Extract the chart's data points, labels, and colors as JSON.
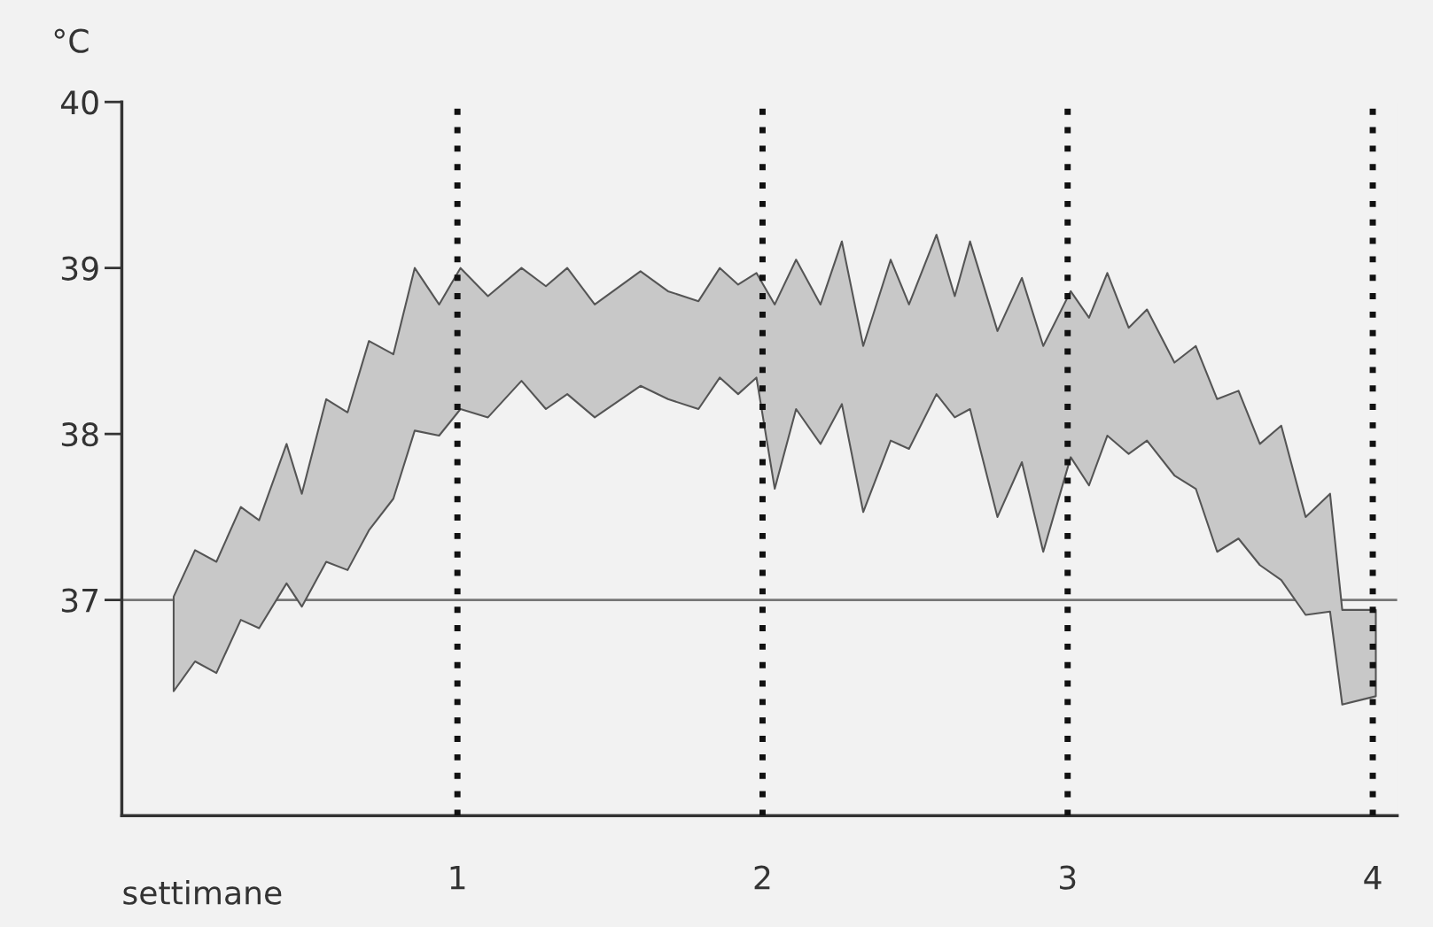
{
  "chart_data": {
    "type": "area",
    "xlabel": "settimane",
    "ylabel": "°C",
    "xlim": [
      -0.1,
      4.08
    ],
    "ylim": [
      35.7,
      40
    ],
    "xticks": [
      1,
      2,
      3,
      4
    ],
    "yticks": [
      37,
      38,
      39,
      40
    ],
    "grid": false,
    "series": [
      {
        "color": "#c8c8c8",
        "x": [
          0.07,
          0.14,
          0.21,
          0.29,
          0.35,
          0.44,
          0.49,
          0.57,
          0.64,
          0.71,
          0.79,
          0.86,
          0.94,
          1.01,
          1.1,
          1.21,
          1.29,
          1.36,
          1.45,
          1.6,
          1.69,
          1.79,
          1.86,
          1.92,
          1.98,
          2.04,
          2.11,
          2.19,
          2.26,
          2.33,
          2.42,
          2.48,
          2.57,
          2.63,
          2.68,
          2.77,
          2.85,
          2.92,
          3.01,
          3.07,
          3.13,
          3.2,
          3.26,
          3.35,
          3.42,
          3.49,
          3.56,
          3.63,
          3.7,
          3.78,
          3.86,
          3.9,
          4.01
        ],
        "values": [
          null,
          null,
          null,
          null,
          null,
          null,
          null,
          null,
          null,
          null,
          null,
          null,
          null,
          null,
          null,
          null,
          null,
          null,
          null,
          null,
          null,
          null,
          null,
          null,
          null,
          null,
          null,
          null,
          null,
          null,
          null,
          null,
          null,
          null,
          null,
          null,
          null,
          null,
          null,
          null,
          null,
          null,
          null,
          null,
          null,
          null,
          null,
          null,
          null,
          null,
          null,
          null,
          null
        ],
        "upper": [
          37.02,
          37.3,
          37.23,
          37.56,
          37.48,
          37.94,
          37.64,
          38.21,
          38.13,
          38.56,
          38.48,
          39.0,
          38.78,
          39.0,
          38.83,
          39.0,
          38.89,
          39.0,
          38.78,
          38.98,
          38.86,
          38.8,
          39.0,
          38.9,
          38.97,
          38.78,
          39.05,
          38.78,
          39.16,
          38.53,
          39.05,
          38.78,
          39.2,
          38.83,
          39.16,
          38.62,
          38.94,
          38.53,
          38.86,
          38.7,
          38.97,
          38.64,
          38.75,
          38.43,
          38.53,
          38.21,
          38.26,
          37.94,
          38.05,
          37.5,
          37.64,
          36.94,
          36.94
        ],
        "lower": [
          36.45,
          36.63,
          36.56,
          36.88,
          36.83,
          37.1,
          36.96,
          37.23,
          37.18,
          37.42,
          37.61,
          38.02,
          37.99,
          38.15,
          38.1,
          38.32,
          38.15,
          38.24,
          38.1,
          38.29,
          38.21,
          38.15,
          38.34,
          38.24,
          38.34,
          37.67,
          38.15,
          37.94,
          38.18,
          37.53,
          37.96,
          37.91,
          38.24,
          38.1,
          38.15,
          37.5,
          37.83,
          37.29,
          37.86,
          37.69,
          37.99,
          37.88,
          37.96,
          37.75,
          37.67,
          37.29,
          37.37,
          37.21,
          37.12,
          36.91,
          36.93,
          36.37,
          36.42
        ]
      }
    ],
    "ref_lines": [
      {
        "axis": "y",
        "value": 37,
        "color": "#777777",
        "line_style": "solid"
      },
      {
        "axis": "x",
        "value": 1,
        "color": "#111111",
        "line_style": "dotted"
      },
      {
        "axis": "x",
        "value": 2,
        "color": "#111111",
        "line_style": "dotted"
      },
      {
        "axis": "x",
        "value": 3,
        "color": "#111111",
        "line_style": "dotted"
      },
      {
        "axis": "x",
        "value": 4,
        "color": "#111111",
        "line_style": "dotted"
      }
    ]
  }
}
